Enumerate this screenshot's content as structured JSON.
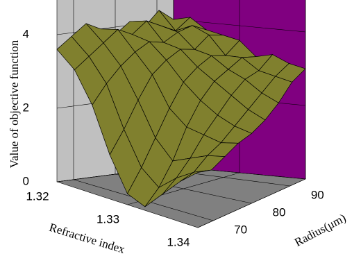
{
  "chart_data": {
    "type": "surface",
    "zlabel": "Value of objective function",
    "xlabel": "Refractive index",
    "ylabel": "Radius(μm)",
    "xlim": [
      1.32,
      1.34
    ],
    "ylim": [
      66,
      94
    ],
    "zlim": [
      0,
      5
    ],
    "xticks": [
      1.32,
      1.33,
      1.34
    ],
    "yticks": [
      70,
      80,
      90
    ],
    "zticks": [
      0,
      2,
      4
    ],
    "grid": true,
    "surface_color": "#80802e",
    "x": [
      1.32,
      1.3225,
      1.325,
      1.3275,
      1.33,
      1.3325,
      1.335,
      1.3375,
      1.34
    ],
    "y": [
      66,
      69.5,
      73,
      76.5,
      80,
      83.5,
      87,
      90.5,
      94
    ],
    "z": [
      [
        3.6,
        3.9,
        4.2,
        4.0,
        3.8,
        4.1,
        3.9,
        4.3,
        4.0
      ],
      [
        3.2,
        3.5,
        3.8,
        4.1,
        3.9,
        4.2,
        4.0,
        3.8,
        4.1
      ],
      [
        2.4,
        2.9,
        3.3,
        3.6,
        3.8,
        3.7,
        3.9,
        4.0,
        3.8
      ],
      [
        1.2,
        1.8,
        2.5,
        3.1,
        3.4,
        3.6,
        3.5,
        3.8,
        3.7
      ],
      [
        0.3,
        0.9,
        1.6,
        2.3,
        2.9,
        3.2,
        3.4,
        3.3,
        3.6
      ],
      [
        0.1,
        0.5,
        1.1,
        1.9,
        2.5,
        2.9,
        3.1,
        3.3,
        3.2
      ],
      [
        0.6,
        0.9,
        1.3,
        1.8,
        2.2,
        2.6,
        2.9,
        3.0,
        3.3
      ],
      [
        1.1,
        1.2,
        1.5,
        1.7,
        2.0,
        2.3,
        2.6,
        2.9,
        3.1
      ],
      [
        1.5,
        1.4,
        1.6,
        1.8,
        1.9,
        2.1,
        2.4,
        2.8,
        3.0
      ]
    ]
  }
}
